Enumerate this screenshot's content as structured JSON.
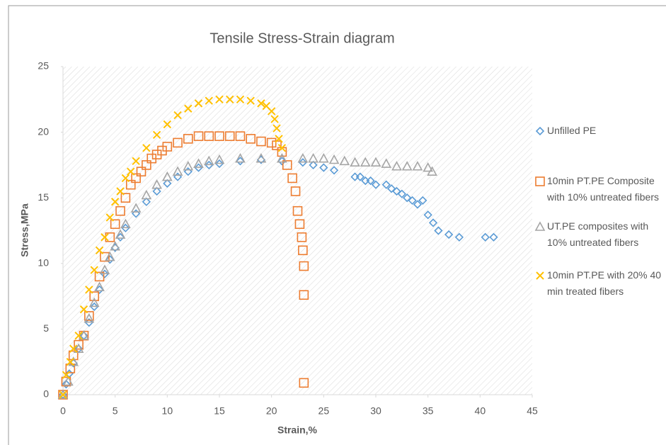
{
  "chart_data": {
    "type": "scatter",
    "title": "Tensile Stress-Strain diagram",
    "x_label": "Strain,%",
    "y_label": "Stress,MPa",
    "xlim": [
      0,
      45
    ],
    "xticks": [
      0,
      5,
      10,
      15,
      20,
      25,
      30,
      35,
      40,
      45
    ],
    "ylim": [
      0,
      25
    ],
    "yticks": [
      0,
      5,
      10,
      15,
      20,
      25
    ],
    "legend": "right",
    "series": [
      {
        "name": "Unfilled PE",
        "color": "#5b9bd5",
        "marker": "diamond",
        "x": [
          0,
          0.3,
          0.6,
          1,
          1.5,
          2,
          2.5,
          3,
          3.5,
          4,
          4.5,
          5,
          5.5,
          6,
          7,
          8,
          9,
          10,
          11,
          12,
          13,
          14,
          15,
          17,
          19,
          21,
          23,
          24,
          25,
          26,
          28,
          28.5,
          29,
          29.5,
          30,
          31,
          31.5,
          32,
          32.5,
          33,
          33.5,
          34,
          34.5,
          35,
          35.5,
          36,
          37,
          38,
          40.5,
          41.3
        ],
        "values": [
          0,
          0.8,
          1.6,
          2.4,
          3.5,
          4.5,
          5.5,
          6.7,
          8,
          9.2,
          10.3,
          11.2,
          12,
          12.7,
          13.8,
          14.7,
          15.5,
          16.1,
          16.6,
          17,
          17.3,
          17.5,
          17.6,
          17.8,
          17.9,
          17.8,
          17.7,
          17.5,
          17.3,
          17.1,
          16.6,
          16.6,
          16.3,
          16.3,
          16,
          16,
          15.7,
          15.5,
          15.3,
          15,
          14.8,
          14.5,
          14.8,
          13.7,
          13.1,
          12.5,
          12.2,
          12,
          12,
          12
        ]
      },
      {
        "name": "10min PT.PE Composite with 10% untreated fibers",
        "color": "#ed7d31",
        "marker": "square",
        "x": [
          0,
          0.3,
          0.7,
          1,
          1.5,
          2,
          2.5,
          3,
          3.5,
          4,
          4.5,
          5,
          5.5,
          6,
          6.5,
          7,
          7.5,
          8,
          8.5,
          9,
          9.5,
          10,
          11,
          12,
          13,
          14,
          15,
          16,
          17,
          18,
          19,
          20,
          20.5,
          21,
          21.5,
          22,
          22.3,
          22.5,
          22.7,
          22.9,
          23,
          23.1,
          23.1,
          23.1
        ],
        "values": [
          0,
          1,
          2,
          3,
          3.8,
          4.5,
          6,
          7.5,
          9,
          10.5,
          12,
          13,
          14,
          15,
          16,
          16.5,
          17,
          17.5,
          18,
          18.3,
          18.6,
          18.9,
          19.2,
          19.5,
          19.7,
          19.7,
          19.7,
          19.7,
          19.7,
          19.5,
          19.3,
          19.2,
          19,
          18.5,
          17.5,
          16.5,
          15.5,
          14,
          13,
          12,
          11,
          9.8,
          7.6,
          0.9
        ]
      },
      {
        "name": "UT.PE composites with 10% untreated fibers",
        "color": "#a5a5a5",
        "marker": "triangle",
        "x": [
          0,
          0.5,
          1,
          1.5,
          2,
          2.5,
          3,
          3.5,
          4,
          4.5,
          5,
          5.5,
          6,
          7,
          8,
          9,
          10,
          11,
          12,
          13,
          14,
          15,
          17,
          19,
          21,
          23,
          24,
          25,
          26,
          27,
          28,
          29,
          30,
          31,
          32,
          33,
          34,
          35,
          35.4
        ],
        "values": [
          0,
          1,
          2.5,
          3.5,
          4.5,
          5.8,
          7,
          8.2,
          9.5,
          10.5,
          11.3,
          12.2,
          13,
          14.2,
          15.2,
          16,
          16.6,
          17,
          17.4,
          17.6,
          17.8,
          17.9,
          18,
          18,
          18,
          18,
          18,
          18,
          17.9,
          17.8,
          17.7,
          17.7,
          17.7,
          17.6,
          17.4,
          17.4,
          17.4,
          17.3,
          17
        ]
      },
      {
        "name": "10min PT.PE with 20% 40 min treated fibers",
        "color": "#ffc000",
        "marker": "x",
        "x": [
          0,
          0.3,
          0.7,
          1,
          1.5,
          2,
          2.5,
          3,
          3.5,
          4,
          4.5,
          5,
          5.5,
          6,
          6.5,
          7,
          8,
          9,
          10,
          11,
          12,
          13,
          14,
          15,
          16,
          17,
          18,
          19,
          19.5,
          20,
          20.3,
          20.5,
          20.7,
          21
        ],
        "values": [
          0,
          1.5,
          2.5,
          3.5,
          4.5,
          6.5,
          8,
          9.5,
          11,
          12,
          13.5,
          14.7,
          15.5,
          16.5,
          17,
          17.8,
          18.8,
          19.8,
          20.6,
          21.3,
          21.8,
          22.2,
          22.4,
          22.5,
          22.5,
          22.5,
          22.4,
          22.2,
          22,
          21.6,
          21,
          20.3,
          19.5,
          18.8
        ]
      }
    ]
  }
}
